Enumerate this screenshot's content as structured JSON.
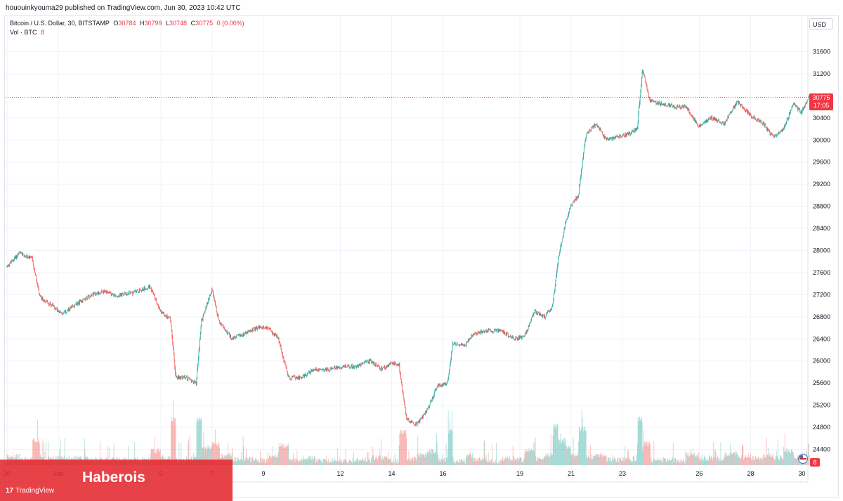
{
  "header": {
    "publisher_line": "hououinkyouma29 published on TradingView.com, Jun 30, 2023 10:42 UTC"
  },
  "legend": {
    "symbol": "Bitcoin / U.S. Dollar, 30, BITSTAMP",
    "o_label": "O",
    "o_value": "30784",
    "h_label": "H",
    "h_value": "30799",
    "l_label": "L",
    "l_value": "30748",
    "c_label": "C",
    "c_value": "30775",
    "change": "0 (0.00%)",
    "vol_label": "Vol · BTC",
    "vol_value": "8"
  },
  "currency_label": "USD",
  "price_badge": {
    "price": "30775",
    "countdown": "17:05"
  },
  "volume_badge": "8",
  "watermark": {
    "title": "Haberois",
    "logo_text": "TradingView"
  },
  "colors": {
    "up": "#26a69a",
    "down": "#ef5350",
    "last_price": "#f23645",
    "banner": "#e2282e"
  },
  "chart_data": {
    "type": "candlestick",
    "symbol": "BTCUSD",
    "interval": "30",
    "ylim": [
      24200,
      31900
    ],
    "y_ticks": [
      24400,
      24800,
      25200,
      25600,
      26000,
      26400,
      26800,
      27200,
      27600,
      28000,
      28400,
      28800,
      29200,
      29600,
      30000,
      30400,
      31200,
      31600
    ],
    "last_price": 30775,
    "x_tick_labels": [
      "30",
      "Jun",
      "5",
      "7",
      "9",
      "12",
      "14",
      "16",
      "19",
      "21",
      "23",
      "26",
      "28",
      "30"
    ],
    "x_tick_days": [
      0,
      2,
      6,
      8,
      10,
      13,
      15,
      17,
      20,
      22,
      24,
      27,
      29,
      31
    ],
    "price_path": [
      [
        0,
        27700
      ],
      [
        0.5,
        27950
      ],
      [
        1.0,
        27850
      ],
      [
        1.3,
        27150
      ],
      [
        1.8,
        27000
      ],
      [
        2.2,
        26850
      ],
      [
        2.8,
        27050
      ],
      [
        3.3,
        27200
      ],
      [
        3.8,
        27250
      ],
      [
        4.3,
        27180
      ],
      [
        5.0,
        27250
      ],
      [
        5.6,
        27350
      ],
      [
        6.0,
        26900
      ],
      [
        6.4,
        26750
      ],
      [
        6.6,
        25700
      ],
      [
        7.0,
        25700
      ],
      [
        7.4,
        25600
      ],
      [
        7.6,
        26700
      ],
      [
        8.0,
        27300
      ],
      [
        8.3,
        26700
      ],
      [
        8.8,
        26400
      ],
      [
        9.3,
        26500
      ],
      [
        9.8,
        26600
      ],
      [
        10.2,
        26600
      ],
      [
        10.6,
        26400
      ],
      [
        11.0,
        25700
      ],
      [
        11.5,
        25700
      ],
      [
        12.0,
        25850
      ],
      [
        12.6,
        25850
      ],
      [
        13.1,
        25900
      ],
      [
        13.6,
        25900
      ],
      [
        14.2,
        26000
      ],
      [
        14.6,
        25850
      ],
      [
        15.0,
        25950
      ],
      [
        15.3,
        25950
      ],
      [
        15.6,
        24950
      ],
      [
        16.0,
        24850
      ],
      [
        16.4,
        25100
      ],
      [
        16.8,
        25550
      ],
      [
        17.2,
        25600
      ],
      [
        17.4,
        26300
      ],
      [
        17.9,
        26300
      ],
      [
        18.2,
        26500
      ],
      [
        18.8,
        26550
      ],
      [
        19.3,
        26550
      ],
      [
        19.8,
        26400
      ],
      [
        20.2,
        26450
      ],
      [
        20.6,
        26900
      ],
      [
        21.0,
        26800
      ],
      [
        21.3,
        27000
      ],
      [
        21.5,
        27800
      ],
      [
        21.8,
        28500
      ],
      [
        22.0,
        28800
      ],
      [
        22.3,
        29000
      ],
      [
        22.6,
        30100
      ],
      [
        23.0,
        30300
      ],
      [
        23.4,
        30000
      ],
      [
        23.8,
        30050
      ],
      [
        24.2,
        30100
      ],
      [
        24.6,
        30200
      ],
      [
        24.8,
        31300
      ],
      [
        25.1,
        30700
      ],
      [
        25.6,
        30650
      ],
      [
        26.1,
        30600
      ],
      [
        26.5,
        30600
      ],
      [
        27.0,
        30250
      ],
      [
        27.5,
        30400
      ],
      [
        28.0,
        30300
      ],
      [
        28.5,
        30700
      ],
      [
        29.0,
        30450
      ],
      [
        29.5,
        30300
      ],
      [
        29.9,
        30050
      ],
      [
        30.3,
        30200
      ],
      [
        30.7,
        30650
      ],
      [
        31.0,
        30500
      ],
      [
        31.3,
        30775
      ]
    ]
  }
}
